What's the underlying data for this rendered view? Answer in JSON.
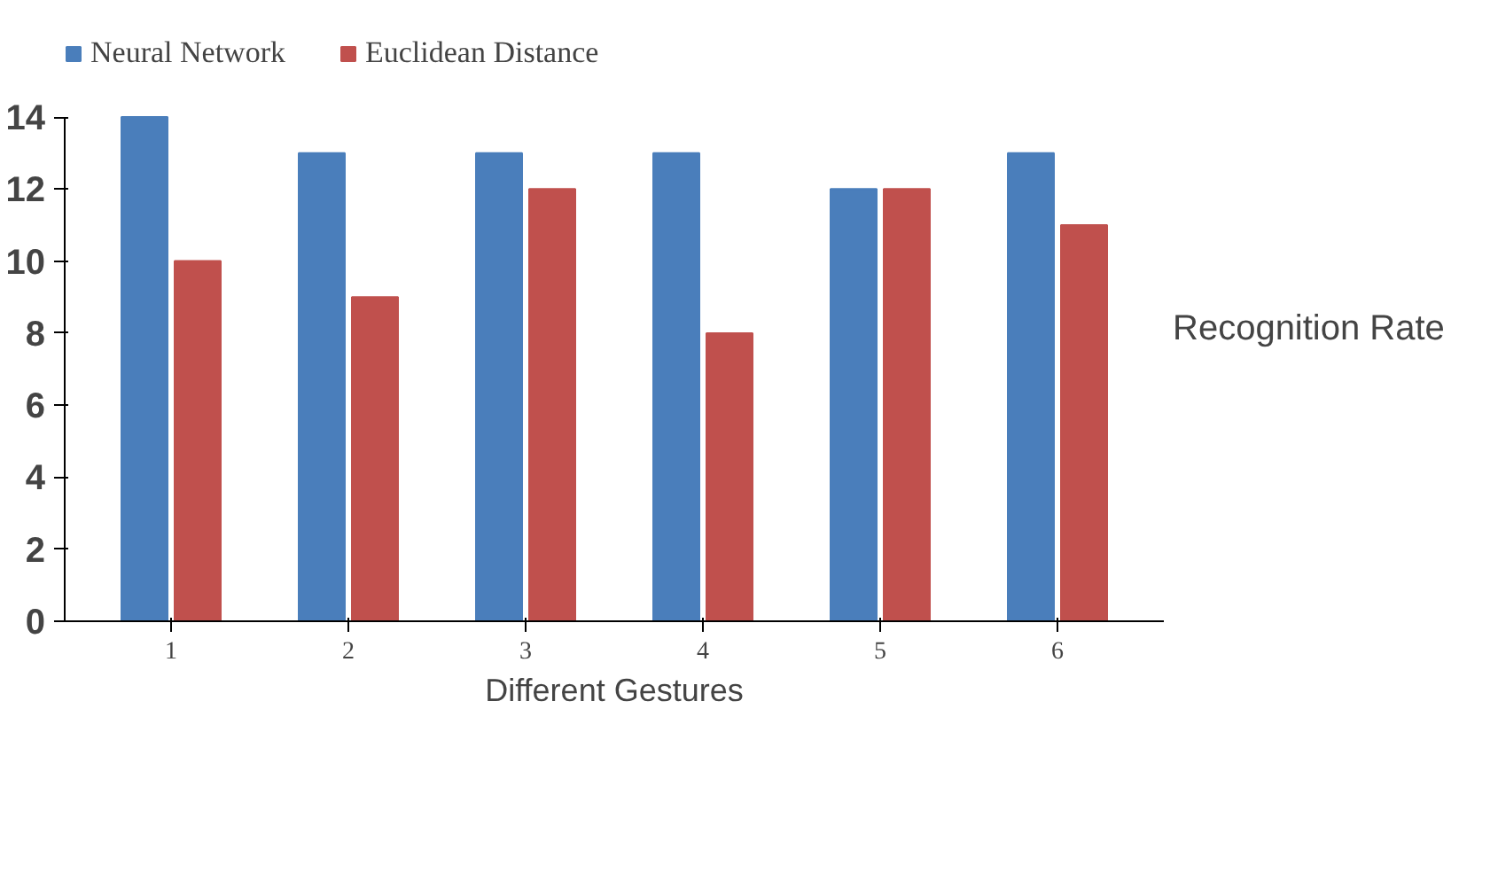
{
  "chart_data": {
    "type": "bar",
    "categories": [
      "1",
      "2",
      "3",
      "4",
      "5",
      "6"
    ],
    "series": [
      {
        "name": "Neural Network",
        "color": "#4a7ebb",
        "values": [
          14,
          13,
          13,
          13,
          12,
          13
        ]
      },
      {
        "name": "Euclidean Distance",
        "color": "#c0504d",
        "values": [
          10,
          9,
          12,
          8,
          12,
          11
        ]
      }
    ],
    "ylim": [
      0,
      14
    ],
    "yticks": [
      0,
      2,
      4,
      6,
      8,
      10,
      12,
      14
    ],
    "xlabel": "Different Gestures",
    "ylabel": "Recognition Rate",
    "grid": false,
    "legend": "top left"
  }
}
